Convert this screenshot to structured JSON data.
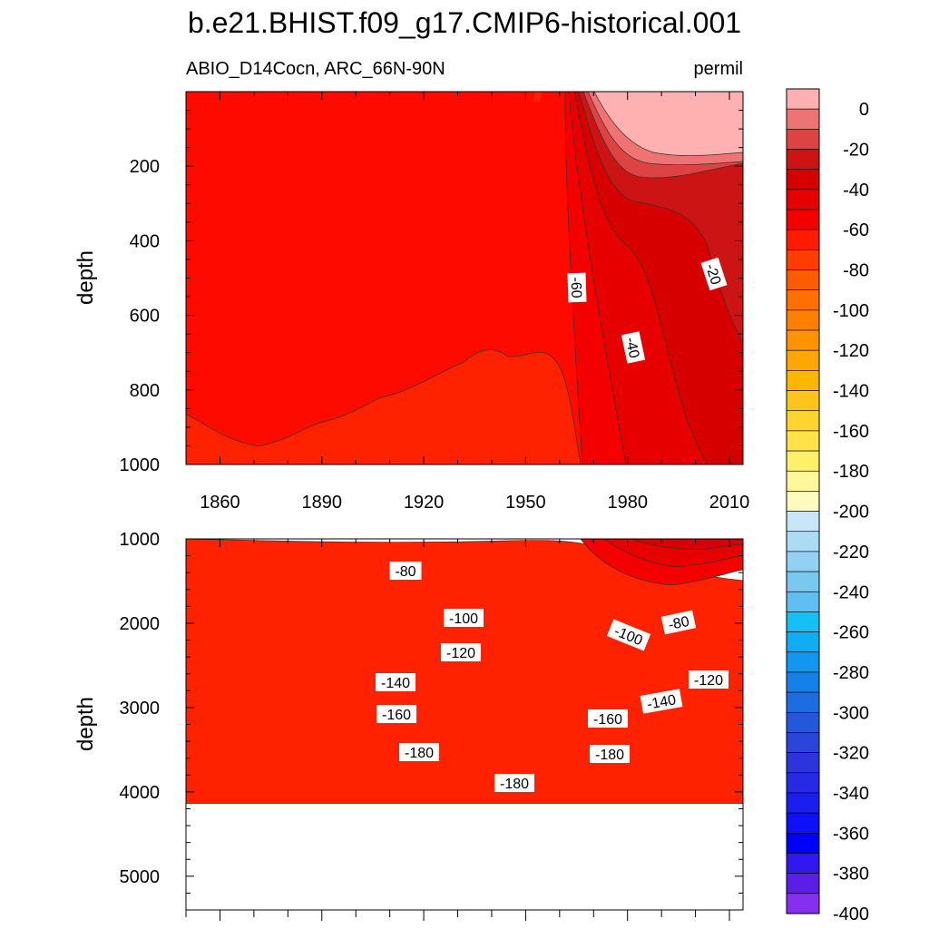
{
  "title": "b.e21.BHIST.f09_g17.CMIP6-historical.001",
  "chart_data": [
    {
      "type": "heatmap",
      "panel": "upper",
      "subtitle_left": "ABIO_D14Cocn, ARC_66N-90N",
      "subtitle_right": "permil",
      "ylabel": "depth",
      "xlim": [
        1850,
        2014
      ],
      "ylim": [
        0,
        1000
      ],
      "x_ticks": [
        "1860",
        "1890",
        "1920",
        "1950",
        "1980",
        "2010"
      ],
      "y_ticks": [
        "200",
        "400",
        "600",
        "800",
        "1000"
      ],
      "contour_labels": [
        "-60",
        "-40",
        "-20"
      ]
    },
    {
      "type": "heatmap",
      "panel": "lower",
      "ylabel": "depth",
      "xlim": [
        1850,
        2014
      ],
      "ylim": [
        1000,
        5400
      ],
      "y_ticks": [
        "1000",
        "2000",
        "3000",
        "4000",
        "5000"
      ],
      "contour_labels": [
        "-80",
        "-80",
        "-100",
        "-100",
        "-120",
        "-120",
        "-140",
        "-140",
        "-160",
        "-160",
        "-180",
        "-180",
        "-180"
      ]
    }
  ],
  "colorbar": {
    "labels": [
      "0",
      "-20",
      "-40",
      "-60",
      "-80",
      "-100",
      "-120",
      "-140",
      "-160",
      "-180",
      "-200",
      "-220",
      "-240",
      "-260",
      "-280",
      "-300",
      "-320",
      "-340",
      "-360",
      "-380",
      "-400"
    ],
    "colors": [
      "#ffb0b0",
      "#ef7373",
      "#dd4343",
      "#cc1414",
      "#d70000",
      "#e60000",
      "#f50000",
      "#ff1a00",
      "#ff3d00",
      "#ff5c00",
      "#ff7000",
      "#ff8000",
      "#ff9300",
      "#ffa600",
      "#ffb600",
      "#ffc41a",
      "#ffd42e",
      "#ffe24a",
      "#fff06a",
      "#fff79a",
      "#fffbbf",
      "#c8e6f8",
      "#acdcf4",
      "#93d1f2",
      "#79c8f0",
      "#5ebff0",
      "#16c0f5",
      "#10adf5",
      "#1296f0",
      "#1680ea",
      "#1c6ce2",
      "#2358dc",
      "#2a46d8",
      "#2c35dc",
      "#262ae6",
      "#1a1ef0",
      "#0e10f8",
      "#0000ff",
      "#3018ee",
      "#5b1ee6",
      "#8430ee"
    ]
  }
}
